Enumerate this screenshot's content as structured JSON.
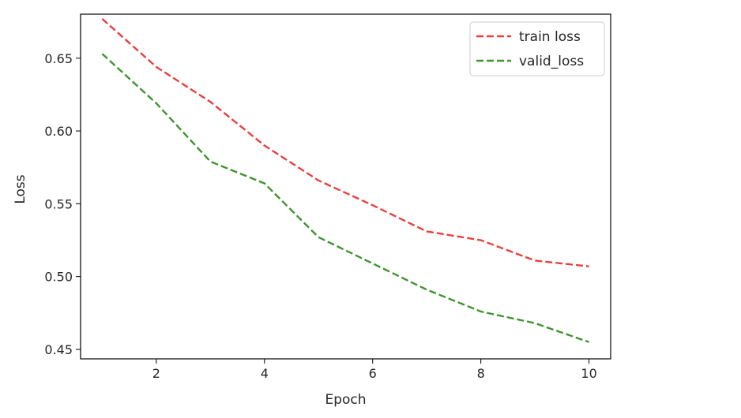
{
  "chart_data": {
    "type": "line",
    "xlabel": "Epoch",
    "ylabel": "Loss",
    "xlim": [
      0.6,
      10.4
    ],
    "ylim": [
      0.4435,
      0.6802
    ],
    "xticks": [
      2,
      4,
      6,
      8,
      10
    ],
    "xtick_labels": [
      "2",
      "4",
      "6",
      "8",
      "10"
    ],
    "yticks": [
      0.45,
      0.5,
      0.55,
      0.6,
      0.65
    ],
    "ytick_labels": [
      "0.45",
      "0.50",
      "0.55",
      "0.60",
      "0.65"
    ],
    "grid": false,
    "legend_position": "top-right",
    "x": [
      1,
      2,
      3,
      4,
      5,
      6,
      7,
      8,
      9,
      10
    ],
    "series": [
      {
        "name": "train loss",
        "color": "#e8403e",
        "line_style": "dashed",
        "values": [
          0.677,
          0.644,
          0.62,
          0.59,
          0.566,
          0.549,
          0.531,
          0.525,
          0.511,
          0.507
        ]
      },
      {
        "name": "valid_loss",
        "color": "#3f942f",
        "line_style": "dashed",
        "values": [
          0.653,
          0.619,
          0.579,
          0.564,
          0.527,
          0.509,
          0.491,
          0.476,
          0.468,
          0.455
        ]
      }
    ]
  }
}
